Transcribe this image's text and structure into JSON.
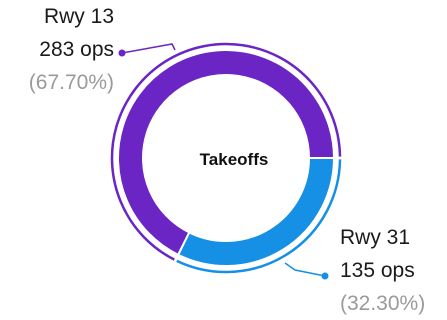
{
  "chart_data": {
    "type": "pie",
    "center_label": "Takeoffs",
    "slices": [
      {
        "name": "Rwy 13",
        "value": 283,
        "value_label": "283 ops",
        "percent_label": "(67.70%)",
        "color": "#6a25c4"
      },
      {
        "name": "Rwy 31",
        "value": 135,
        "value_label": "135 ops",
        "percent_label": "(32.30%)",
        "color": "#1590e4"
      }
    ]
  }
}
